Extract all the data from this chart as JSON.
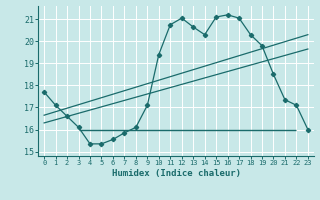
{
  "xlabel": "Humidex (Indice chaleur)",
  "bg_color": "#c8e8e8",
  "grid_color": "#ffffff",
  "line_color": "#1a6b6b",
  "xlim": [
    -0.5,
    23.5
  ],
  "ylim": [
    14.8,
    21.6
  ],
  "yticks": [
    15,
    16,
    17,
    18,
    19,
    20,
    21
  ],
  "xticks": [
    0,
    1,
    2,
    3,
    4,
    5,
    6,
    7,
    8,
    9,
    10,
    11,
    12,
    13,
    14,
    15,
    16,
    17,
    18,
    19,
    20,
    21,
    22,
    23
  ],
  "main_x": [
    0,
    1,
    2,
    3,
    4,
    5,
    6,
    7,
    8,
    9,
    10,
    11,
    12,
    13,
    14,
    15,
    16,
    17,
    18,
    19,
    20,
    21,
    22,
    23
  ],
  "main_y": [
    17.7,
    17.1,
    16.6,
    16.1,
    15.35,
    15.35,
    15.55,
    15.85,
    16.1,
    17.1,
    19.4,
    20.75,
    21.05,
    20.65,
    20.3,
    21.1,
    21.2,
    21.05,
    20.3,
    19.8,
    18.5,
    17.35,
    17.1,
    16.0
  ],
  "trend1_x": [
    0,
    23
  ],
  "trend1_y": [
    16.65,
    20.3
  ],
  "trend2_x": [
    0,
    23
  ],
  "trend2_y": [
    16.3,
    19.65
  ],
  "hline_y": 16.0,
  "hline_x_start": 3.0,
  "hline_x_end": 22.0
}
